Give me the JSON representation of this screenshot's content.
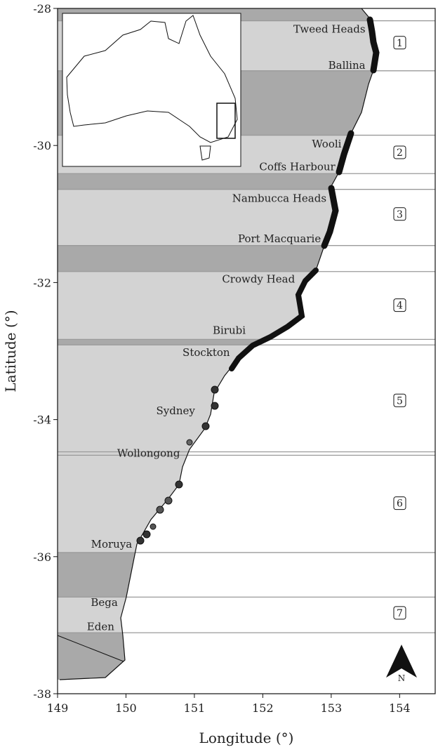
{
  "map": {
    "x_axis": {
      "label": "Longitude (°)",
      "lim": [
        149,
        154.52
      ],
      "ticks": [
        149,
        150,
        151,
        152,
        153,
        154
      ]
    },
    "y_axis": {
      "label": "Latitude (°)",
      "lim": [
        -38,
        -28
      ],
      "ticks": [
        -28,
        -30,
        -32,
        -34,
        -36,
        -38
      ]
    },
    "places": [
      {
        "name": "Tweed Heads",
        "lon": 153.5,
        "lat": -28.3
      },
      {
        "name": "Ballina",
        "lon": 153.5,
        "lat": -28.83
      },
      {
        "name": "Wooli",
        "lon": 153.15,
        "lat": -29.98
      },
      {
        "name": "Coffs Harbour",
        "lon": 153.06,
        "lat": -30.31
      },
      {
        "name": "Nambucca Heads",
        "lon": 152.93,
        "lat": -30.77
      },
      {
        "name": "Port Macquarie",
        "lon": 152.85,
        "lat": -31.36
      },
      {
        "name": "Crowdy Head",
        "lon": 152.47,
        "lat": -31.95
      },
      {
        "name": "Birubi",
        "lon": 151.75,
        "lat": -32.7
      },
      {
        "name": "Stockton",
        "lon": 151.52,
        "lat": -33.02
      },
      {
        "name": "Sydney",
        "lon": 151.01,
        "lat": -33.87
      },
      {
        "name": "Wollongong",
        "lon": 150.79,
        "lat": -34.49
      },
      {
        "name": "Moruya",
        "lon": 150.09,
        "lat": -35.82
      },
      {
        "name": "Bega",
        "lon": 149.88,
        "lat": -36.67
      },
      {
        "name": "Eden",
        "lon": 149.83,
        "lat": -37.02
      }
    ],
    "zones": [
      {
        "label": "1",
        "lat": -28.5
      },
      {
        "label": "2",
        "lat": -30.1
      },
      {
        "label": "3",
        "lat": -31.0
      },
      {
        "label": "4",
        "lat": -32.33
      },
      {
        "label": "5",
        "lat": -33.72
      },
      {
        "label": "6",
        "lat": -35.22
      },
      {
        "label": "7",
        "lat": -36.82
      }
    ],
    "zone_boundaries": [
      -28.18,
      -28.91,
      -29.85,
      -30.41,
      -30.64,
      -31.46,
      -31.84,
      -32.83,
      -32.91,
      -34.47,
      -34.52,
      -35.94,
      -36.59,
      -37.11
    ],
    "north": "N"
  }
}
